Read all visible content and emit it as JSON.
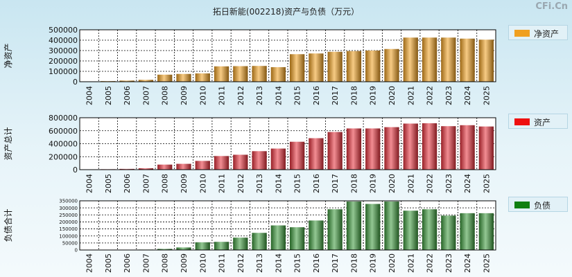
{
  "title": "拓日新能(002218)资产与负债（万元）",
  "brand": "CFi.Cn",
  "chart_data": [
    {
      "type": "bar",
      "ylabel": "净资产",
      "legend": "净资产",
      "color": "#f0a020",
      "ylim": [
        0,
        500000
      ],
      "yticks": [
        0,
        100000,
        200000,
        300000,
        400000,
        500000
      ],
      "categories": [
        "2004",
        "2005",
        "2006",
        "2007",
        "2008",
        "2009",
        "2010",
        "2011",
        "2012",
        "2013",
        "2014",
        "2015",
        "2016",
        "2017",
        "2018",
        "2019",
        "2020",
        "2021",
        "2022",
        "2023",
        "2024",
        "2025"
      ],
      "values": [
        3000,
        6000,
        11000,
        18000,
        68000,
        75000,
        80000,
        148000,
        150000,
        152000,
        140000,
        265000,
        272000,
        288000,
        295000,
        300000,
        315000,
        425000,
        425000,
        425000,
        415000,
        405000
      ]
    },
    {
      "type": "bar",
      "ylabel": "资产总计",
      "legend": "资产",
      "color": "#e8303a",
      "ylim": [
        0,
        800000
      ],
      "yticks": [
        0,
        200000,
        400000,
        600000,
        800000
      ],
      "categories": [
        "2004",
        "2005",
        "2006",
        "2007",
        "2008",
        "2009",
        "2010",
        "2011",
        "2012",
        "2013",
        "2014",
        "2015",
        "2016",
        "2017",
        "2018",
        "2019",
        "2020",
        "2021",
        "2022",
        "2023",
        "2024",
        "2025"
      ],
      "values": [
        4000,
        7000,
        12000,
        22000,
        78000,
        90000,
        135000,
        210000,
        230000,
        285000,
        325000,
        430000,
        485000,
        580000,
        635000,
        635000,
        655000,
        710000,
        715000,
        670000,
        685000,
        665000
      ]
    },
    {
      "type": "bar",
      "ylabel": "负债合计",
      "legend": "负债",
      "color": "#3a9a3a",
      "ylim": [
        0,
        350000
      ],
      "yticks": [
        0,
        50000,
        100000,
        150000,
        200000,
        250000,
        300000,
        350000
      ],
      "categories": [
        "2004",
        "2005",
        "2006",
        "2007",
        "2008",
        "2009",
        "2010",
        "2011",
        "2012",
        "2013",
        "2014",
        "2015",
        "2016",
        "2017",
        "2018",
        "2019",
        "2020",
        "2021",
        "2022",
        "2023",
        "2024",
        "2025"
      ],
      "values": [
        1000,
        1000,
        1000,
        3000,
        8000,
        18000,
        55000,
        58000,
        88000,
        122000,
        175000,
        162000,
        210000,
        290000,
        345000,
        328000,
        345000,
        280000,
        290000,
        245000,
        262000,
        262000
      ]
    }
  ]
}
